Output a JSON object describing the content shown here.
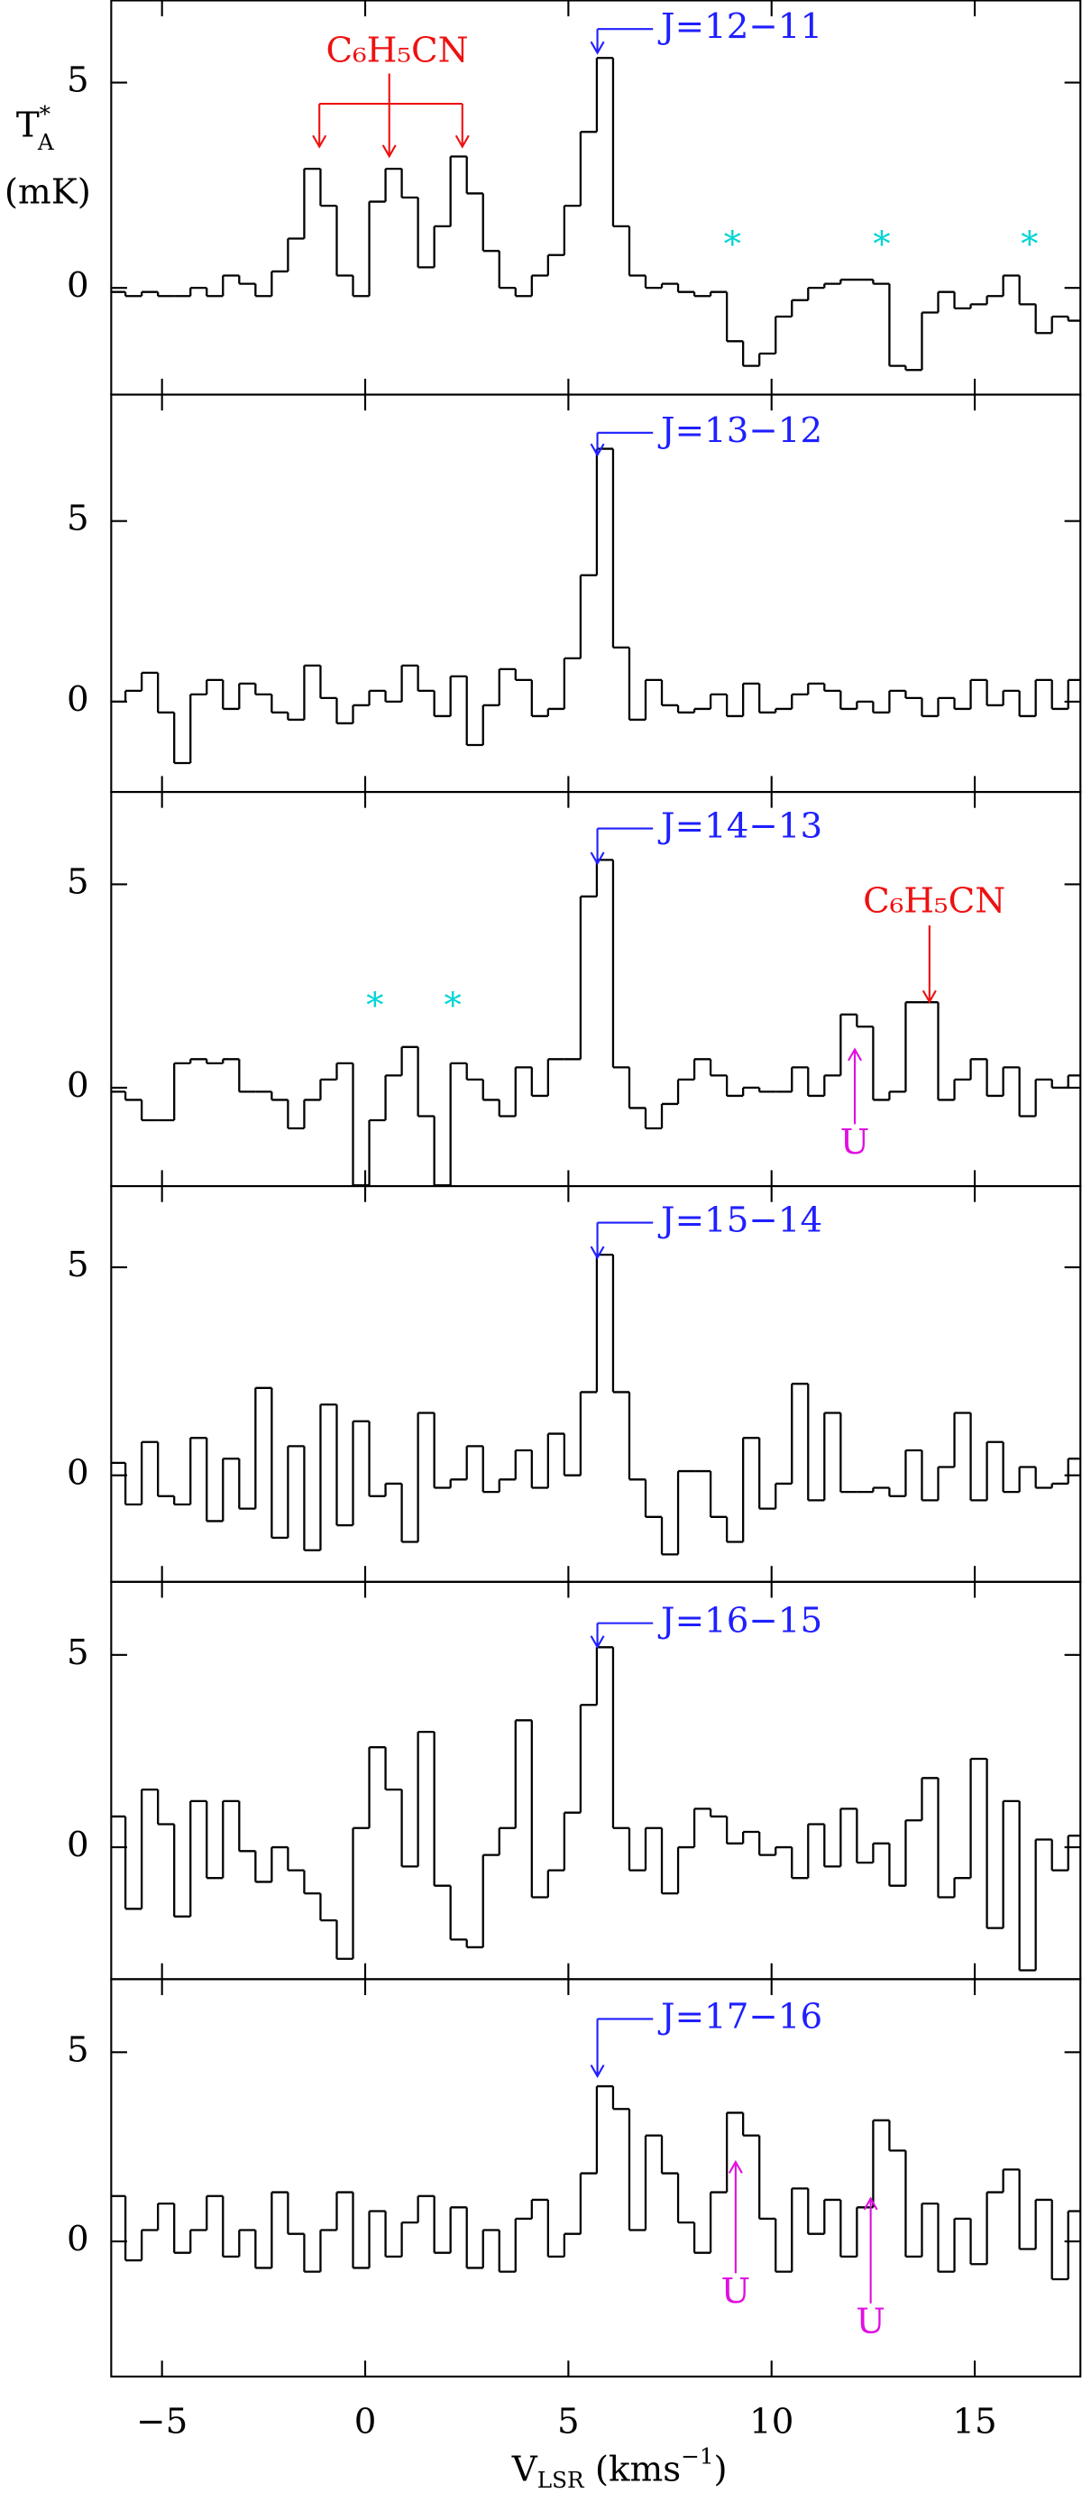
{
  "chart_data": [
    {
      "type": "step",
      "color": "#000000",
      "xlim": [
        -6.25,
        17.6
      ],
      "ylim": [
        -2.6,
        7.0
      ],
      "xticks": [
        {
          "value": -5,
          "label": "−5"
        },
        0,
        5,
        10,
        15
      ],
      "yticks": [
        0,
        5
      ],
      "ylabel": [
        "T",
        "*",
        "A",
        "(mK)"
      ],
      "annotations": [
        "J=12−11",
        "C₆H₅CN",
        "*",
        "*",
        "*"
      ],
      "x": [
        -6.1,
        -5.7,
        -5.3,
        -4.9,
        -4.5,
        -4.1,
        -3.7,
        -3.3,
        -2.9,
        -2.5,
        -2.1,
        -1.7,
        -1.3,
        -0.9,
        -0.5,
        -0.1,
        0.3,
        0.7,
        1.1,
        1.5,
        1.9,
        2.3,
        2.7,
        3.1,
        3.5,
        3.9,
        4.3,
        4.7,
        5.1,
        5.5,
        5.9,
        6.3,
        6.7,
        7.1,
        7.5,
        7.9,
        8.3,
        8.7,
        9.1,
        9.5,
        9.9,
        10.3,
        10.7,
        11.1,
        11.5,
        11.9,
        12.3,
        12.7,
        13.1,
        13.5,
        13.9,
        14.3,
        14.7,
        15.1,
        15.5,
        15.9,
        16.3,
        16.7,
        17.1,
        17.5
      ],
      "values": [
        -0.1,
        -0.2,
        -0.1,
        -0.2,
        -0.2,
        0.0,
        -0.2,
        0.3,
        0.1,
        -0.2,
        0.4,
        1.2,
        2.9,
        2.0,
        0.3,
        -0.2,
        2.1,
        2.9,
        2.2,
        0.5,
        1.5,
        3.2,
        2.3,
        0.9,
        0.0,
        -0.2,
        0.3,
        0.8,
        2.0,
        3.8,
        5.6,
        1.5,
        0.3,
        0.0,
        0.1,
        -0.1,
        -0.2,
        -0.1,
        -1.3,
        -1.9,
        -1.6,
        -0.7,
        -0.3,
        0.0,
        0.1,
        0.2,
        0.2,
        0.1,
        -1.9,
        -2.0,
        -0.6,
        -0.1,
        -0.5,
        -0.4,
        -0.2,
        0.3,
        -0.4,
        -1.1,
        -0.7,
        -0.8
      ]
    },
    {
      "type": "step",
      "color": "#000000",
      "xlim": [
        -6.25,
        17.6
      ],
      "ylim": [
        -2.5,
        8.5
      ],
      "xticks": [
        {
          "value": -5,
          "label": "−5"
        },
        0,
        5,
        10,
        15
      ],
      "yticks": [
        0,
        5
      ],
      "annotations": [
        "J=13−12"
      ],
      "x": [
        -6.1,
        -5.7,
        -5.3,
        -4.9,
        -4.5,
        -4.1,
        -3.7,
        -3.3,
        -2.9,
        -2.5,
        -2.1,
        -1.7,
        -1.3,
        -0.9,
        -0.5,
        -0.1,
        0.3,
        0.7,
        1.1,
        1.5,
        1.9,
        2.3,
        2.7,
        3.1,
        3.5,
        3.9,
        4.3,
        4.7,
        5.1,
        5.5,
        5.9,
        6.3,
        6.7,
        7.1,
        7.5,
        7.9,
        8.3,
        8.7,
        9.1,
        9.5,
        9.9,
        10.3,
        10.7,
        11.1,
        11.5,
        11.9,
        12.3,
        12.7,
        13.1,
        13.5,
        13.9,
        14.3,
        14.7,
        15.1,
        15.5,
        15.9,
        16.3,
        16.7,
        17.1,
        17.5
      ],
      "values": [
        0.0,
        0.3,
        0.8,
        -0.3,
        -1.7,
        0.2,
        0.6,
        -0.2,
        0.5,
        0.2,
        -0.3,
        -0.5,
        1.0,
        0.1,
        -0.6,
        -0.1,
        0.3,
        0.0,
        1.0,
        0.3,
        -0.4,
        0.7,
        -1.2,
        -0.1,
        0.9,
        0.6,
        -0.4,
        -0.2,
        1.2,
        3.5,
        7.0,
        1.5,
        -0.5,
        0.6,
        -0.1,
        -0.3,
        -0.2,
        0.2,
        -0.4,
        0.5,
        -0.3,
        -0.2,
        0.2,
        0.5,
        0.3,
        -0.2,
        0.0,
        -0.3,
        0.3,
        0.1,
        -0.4,
        0.1,
        -0.2,
        0.6,
        -0.1,
        0.3,
        -0.4,
        0.6,
        -0.2,
        0.6
      ]
    },
    {
      "type": "step",
      "color": "#000000",
      "xlim": [
        -6.25,
        17.6
      ],
      "ylim": [
        -2.42,
        7.27
      ],
      "xticks": [
        {
          "value": -5,
          "label": "−5"
        },
        0,
        5,
        10,
        15
      ],
      "yticks": [
        0,
        5
      ],
      "annotations": [
        "J=14−13",
        "C₆H₅CN",
        "*",
        "*",
        "U"
      ],
      "x": [
        -6.1,
        -5.7,
        -5.3,
        -4.9,
        -4.5,
        -4.1,
        -3.7,
        -3.3,
        -2.9,
        -2.5,
        -2.1,
        -1.7,
        -1.3,
        -0.9,
        -0.5,
        -0.1,
        0.3,
        0.7,
        1.1,
        1.5,
        1.9,
        2.3,
        2.7,
        3.1,
        3.5,
        3.9,
        4.3,
        4.7,
        5.1,
        5.5,
        5.9,
        6.3,
        6.7,
        7.1,
        7.5,
        7.9,
        8.3,
        8.7,
        9.1,
        9.5,
        9.9,
        10.3,
        10.7,
        11.1,
        11.5,
        11.9,
        12.3,
        12.7,
        13.1,
        13.5,
        13.9,
        14.3,
        14.7,
        15.1,
        15.5,
        15.9,
        16.3,
        16.7,
        17.1,
        17.5
      ],
      "values": [
        -0.1,
        -0.3,
        -0.8,
        -0.8,
        0.6,
        0.7,
        0.6,
        0.7,
        -0.1,
        -0.1,
        -0.3,
        -1.0,
        -0.3,
        0.2,
        0.6,
        -2.4,
        -0.8,
        0.3,
        1.0,
        -0.7,
        -2.4,
        0.6,
        0.2,
        -0.3,
        -0.7,
        0.5,
        -0.2,
        0.7,
        0.7,
        4.7,
        5.6,
        0.5,
        -0.5,
        -1.0,
        -0.4,
        0.2,
        0.7,
        0.3,
        -0.2,
        0.0,
        -0.1,
        -0.1,
        0.5,
        -0.2,
        0.3,
        1.8,
        1.5,
        -0.3,
        -0.1,
        2.1,
        2.1,
        -0.3,
        0.2,
        0.7,
        -0.2,
        0.5,
        -0.7,
        0.2,
        0.0,
        0.3
      ]
    },
    {
      "type": "step",
      "color": "#000000",
      "xlim": [
        -6.25,
        17.6
      ],
      "ylim": [
        -2.56,
        6.95
      ],
      "xticks": [
        {
          "value": -5,
          "label": "−5"
        },
        0,
        5,
        10,
        15
      ],
      "yticks": [
        0,
        5
      ],
      "annotations": [
        "J=15−14"
      ],
      "x": [
        -6.1,
        -5.7,
        -5.3,
        -4.9,
        -4.5,
        -4.1,
        -3.7,
        -3.3,
        -2.9,
        -2.5,
        -2.1,
        -1.7,
        -1.3,
        -0.9,
        -0.5,
        -0.1,
        0.3,
        0.7,
        1.1,
        1.5,
        1.9,
        2.3,
        2.7,
        3.1,
        3.5,
        3.9,
        4.3,
        4.7,
        5.1,
        5.5,
        5.9,
        6.3,
        6.7,
        7.1,
        7.5,
        7.9,
        8.3,
        8.7,
        9.1,
        9.5,
        9.9,
        10.3,
        10.7,
        11.1,
        11.5,
        11.9,
        12.3,
        12.7,
        13.1,
        13.5,
        13.9,
        14.3,
        14.7,
        15.1,
        15.5,
        15.9,
        16.3,
        16.7,
        17.1,
        17.5
      ],
      "values": [
        0.3,
        -0.7,
        0.8,
        -0.5,
        -0.7,
        0.9,
        -1.1,
        0.4,
        -0.8,
        2.1,
        -1.5,
        0.7,
        -1.8,
        1.7,
        -1.2,
        1.3,
        -0.5,
        -0.2,
        -1.6,
        1.5,
        -0.3,
        -0.1,
        0.7,
        -0.4,
        -0.1,
        0.6,
        -0.3,
        1.0,
        0.0,
        2.0,
        5.3,
        2.0,
        -0.1,
        -1.0,
        -1.9,
        0.1,
        0.1,
        -1.0,
        -1.6,
        0.9,
        -0.8,
        -0.2,
        2.2,
        -0.6,
        1.5,
        -0.4,
        -0.4,
        -0.3,
        -0.5,
        0.6,
        -0.6,
        0.2,
        1.5,
        -0.6,
        0.8,
        -0.4,
        0.2,
        -0.3,
        -0.2,
        0.4
      ]
    },
    {
      "type": "step",
      "color": "#000000",
      "xlim": [
        -6.25,
        17.6
      ],
      "ylim": [
        -3.43,
        6.9
      ],
      "xticks": [
        {
          "value": -5,
          "label": "−5"
        },
        0,
        5,
        10,
        15
      ],
      "yticks": [
        0,
        5
      ],
      "annotations": [
        "J=16−15"
      ],
      "x": [
        -6.1,
        -5.7,
        -5.3,
        -4.9,
        -4.5,
        -4.1,
        -3.7,
        -3.3,
        -2.9,
        -2.5,
        -2.1,
        -1.7,
        -1.3,
        -0.9,
        -0.5,
        -0.1,
        0.3,
        0.7,
        1.1,
        1.5,
        1.9,
        2.3,
        2.7,
        3.1,
        3.5,
        3.9,
        4.3,
        4.7,
        5.1,
        5.5,
        5.9,
        6.3,
        6.7,
        7.1,
        7.5,
        7.9,
        8.3,
        8.7,
        9.1,
        9.5,
        9.9,
        10.3,
        10.7,
        11.1,
        11.5,
        11.9,
        12.3,
        12.7,
        13.1,
        13.5,
        13.9,
        14.3,
        14.7,
        15.1,
        15.5,
        15.9,
        16.3,
        16.7,
        17.1,
        17.5
      ],
      "values": [
        0.8,
        -1.6,
        1.5,
        0.6,
        -1.8,
        1.2,
        -0.8,
        1.2,
        -0.1,
        -0.9,
        0.0,
        -0.6,
        -1.2,
        -1.9,
        -2.9,
        0.5,
        2.6,
        1.5,
        -0.5,
        3.0,
        -1.0,
        -2.4,
        -2.6,
        -0.2,
        0.5,
        3.3,
        -1.3,
        -0.6,
        0.9,
        3.7,
        5.2,
        0.5,
        -0.6,
        0.5,
        -1.2,
        0.0,
        1.0,
        0.8,
        0.1,
        0.4,
        -0.2,
        0.0,
        -0.8,
        0.6,
        -0.5,
        1.0,
        -0.4,
        0.1,
        -1.0,
        0.7,
        1.8,
        -1.3,
        -0.8,
        2.3,
        -2.1,
        1.2,
        -3.2,
        0.2,
        -0.6,
        0.3
      ]
    },
    {
      "type": "step",
      "color": "#000000",
      "xlim": [
        -6.25,
        17.6
      ],
      "ylim": [
        -3.57,
        6.93
      ],
      "xticks": [
        {
          "value": -5,
          "label": "−5"
        },
        0,
        5,
        10,
        15
      ],
      "yticks": [
        0,
        5
      ],
      "xlabel": [
        "V",
        "LSR",
        " (kms",
        "−1",
        ")"
      ],
      "annotations": [
        "J=17−16",
        "U",
        "U"
      ],
      "x": [
        -6.1,
        -5.7,
        -5.3,
        -4.9,
        -4.5,
        -4.1,
        -3.7,
        -3.3,
        -2.9,
        -2.5,
        -2.1,
        -1.7,
        -1.3,
        -0.9,
        -0.5,
        -0.1,
        0.3,
        0.7,
        1.1,
        1.5,
        1.9,
        2.3,
        2.7,
        3.1,
        3.5,
        3.9,
        4.3,
        4.7,
        5.1,
        5.5,
        5.9,
        6.3,
        6.7,
        7.1,
        7.5,
        7.9,
        8.3,
        8.7,
        9.1,
        9.5,
        9.9,
        10.3,
        10.7,
        11.1,
        11.5,
        11.9,
        12.3,
        12.7,
        13.1,
        13.5,
        13.9,
        14.3,
        14.7,
        15.1,
        15.5,
        15.9,
        16.3,
        16.7,
        17.1,
        17.5
      ],
      "values": [
        1.2,
        -0.5,
        0.3,
        1.0,
        -0.3,
        0.3,
        1.2,
        -0.4,
        0.3,
        -0.7,
        1.3,
        0.2,
        -0.8,
        0.3,
        1.3,
        -0.7,
        0.8,
        -0.4,
        0.5,
        1.2,
        -0.3,
        0.9,
        -0.7,
        0.3,
        -0.8,
        0.6,
        1.1,
        -0.4,
        0.2,
        1.8,
        4.1,
        3.5,
        0.3,
        2.8,
        1.8,
        0.5,
        -0.3,
        1.3,
        3.4,
        2.8,
        0.6,
        -0.8,
        1.4,
        0.2,
        1.1,
        -0.4,
        0.9,
        3.2,
        2.4,
        -0.4,
        1.0,
        -0.8,
        0.6,
        -0.6,
        1.3,
        1.9,
        -0.2,
        1.1,
        -1.0,
        0.8
      ]
    }
  ]
}
